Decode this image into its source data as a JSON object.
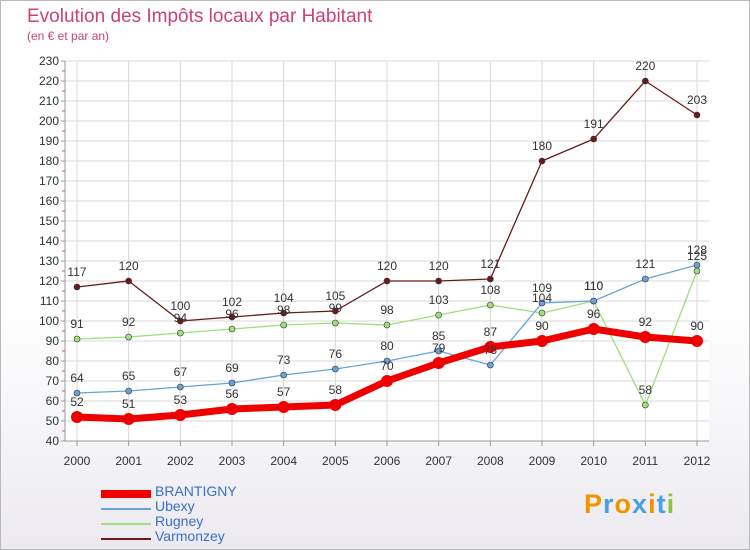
{
  "chart_data": {
    "type": "line",
    "title": "Evolution des Impôts locaux par Habitant",
    "subtitle": "(en € et par an)",
    "xlabel": "",
    "ylabel": "",
    "ylim": [
      40,
      230
    ],
    "ytick_step": 10,
    "categories": [
      "2000",
      "2001",
      "2002",
      "2003",
      "2004",
      "2005",
      "2006",
      "2007",
      "2008",
      "2009",
      "2010",
      "2011",
      "2012"
    ],
    "series": [
      {
        "name": "BRANTIGNY",
        "color": "#ee0000",
        "values": [
          52,
          51,
          53,
          56,
          57,
          58,
          70,
          79,
          87,
          90,
          96,
          92,
          90
        ],
        "labels": [
          "52",
          "51",
          "53",
          "56",
          "57",
          "58",
          "70",
          "79",
          "87",
          "90",
          "96",
          "92",
          "90"
        ]
      },
      {
        "name": "Ubexy",
        "color": "#6aa2d8",
        "values": [
          64,
          65,
          67,
          69,
          73,
          76,
          80,
          85,
          78,
          109,
          110,
          121,
          128
        ],
        "labels": [
          "64",
          "65",
          "67",
          "69",
          "73",
          "76",
          "80",
          "85",
          "78",
          "109",
          "110",
          "121",
          "128"
        ]
      },
      {
        "name": "Rugney",
        "color": "#9ee07a",
        "values": [
          91,
          92,
          94,
          96,
          98,
          99,
          98,
          103,
          108,
          104,
          110,
          58,
          125
        ],
        "labels": [
          "91",
          "92",
          "94",
          "96",
          "98",
          "99",
          "98",
          "103",
          "108",
          "104",
          "110",
          "58",
          "125"
        ]
      },
      {
        "name": "Varmonzey",
        "color": "#6b1a1a",
        "values": [
          117,
          120,
          100,
          102,
          104,
          105,
          120,
          120,
          121,
          180,
          191,
          220,
          203
        ],
        "labels": [
          "117",
          "120",
          "100",
          "102",
          "104",
          "105",
          "120",
          "120",
          "121",
          "180",
          "191",
          "220",
          "203"
        ]
      }
    ]
  },
  "logo": {
    "letters": [
      "P",
      "r",
      "o",
      "x",
      "i",
      "t",
      "i"
    ],
    "colors": [
      "#f29400",
      "#4aa0e0",
      "#f29400",
      "#4aa0e0",
      "#f29400",
      "#4aa0e0",
      "#8cc63f"
    ]
  }
}
